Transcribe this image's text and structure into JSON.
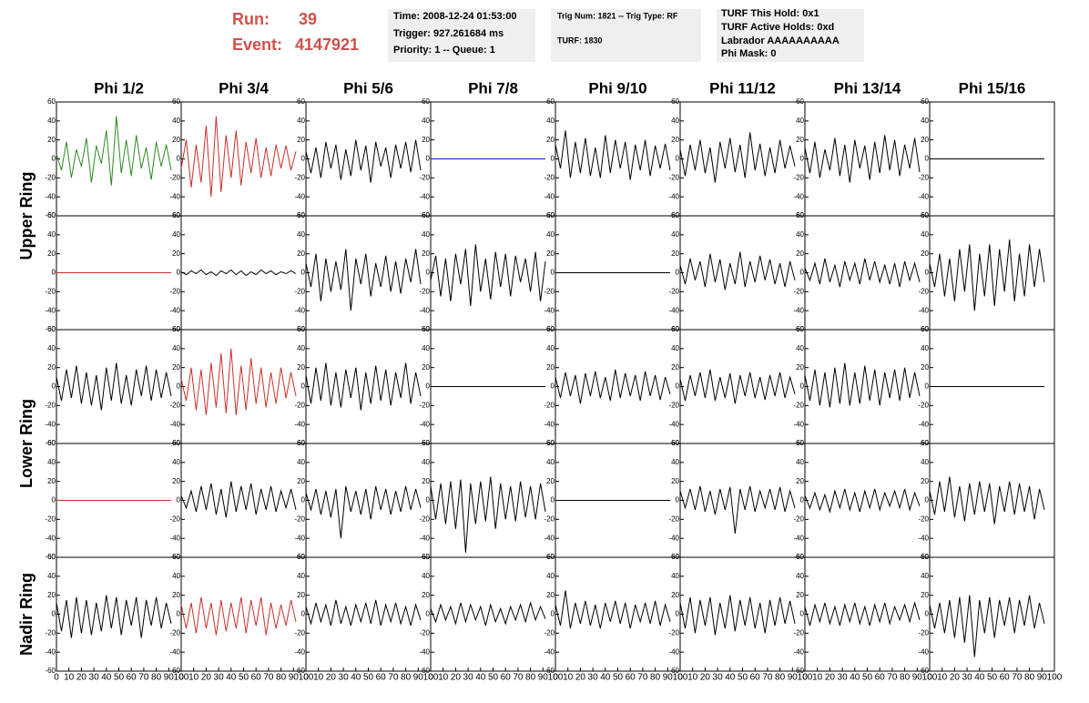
{
  "header": {
    "run_label": "Run:",
    "run": "39",
    "event_label": "Event:",
    "event": "4147921"
  },
  "info": [
    [
      "Time: 2008-12-24 01:53:00",
      "Trigger: 927.261684 ms",
      "Priority: 1 -- Queue: 1"
    ],
    [
      "Trig Num: 1821 -- Trig Type: RF",
      "TURF: 1830"
    ],
    [
      "TURF This Hold: 0x1",
      "TURF Active Holds: 0xd",
      "Labrador AAAAAAAAAA",
      "Phi Mask: 0"
    ]
  ],
  "columns": [
    "Phi 1/2",
    "Phi 3/4",
    "Phi 5/6",
    "Phi 7/8",
    "Phi 9/10",
    "Phi 11/12",
    "Phi 13/14",
    "Phi 15/16"
  ],
  "rows": [
    "Upper Ring",
    "Lower Ring",
    "Nadir Ring"
  ],
  "axes": {
    "xlim": [
      0,
      100
    ],
    "ylim": [
      -60,
      60
    ],
    "yticks": [
      -60,
      -40,
      -20,
      0,
      20,
      40,
      60
    ],
    "xticks": [
      0,
      10,
      20,
      30,
      40,
      50,
      60,
      70,
      80,
      90,
      100
    ]
  },
  "x": [
    0,
    4,
    8,
    12,
    16,
    20,
    24,
    28,
    32,
    36,
    40,
    44,
    48,
    52,
    56,
    60,
    64,
    68,
    72,
    76,
    80,
    84,
    88,
    92
  ],
  "chart_data": [
    {
      "type": "line",
      "color": "#2a8a1e",
      "values": [
        5,
        -12,
        18,
        -20,
        10,
        -8,
        22,
        -25,
        14,
        -5,
        30,
        -28,
        45,
        -15,
        20,
        -18,
        25,
        -10,
        12,
        -22,
        18,
        -8,
        15,
        -12
      ]
    },
    {
      "type": "line",
      "color": "#c8302a",
      "values": [
        -10,
        20,
        -30,
        15,
        -25,
        35,
        -40,
        45,
        -35,
        25,
        -20,
        30,
        -28,
        18,
        -15,
        22,
        -20,
        12,
        -18,
        15,
        -10,
        14,
        -12,
        8
      ]
    },
    {
      "type": "line",
      "color": "#000000",
      "values": [
        8,
        -15,
        12,
        -20,
        18,
        -10,
        15,
        -22,
        10,
        -18,
        20,
        -12,
        14,
        -25,
        18,
        -8,
        12,
        -20,
        15,
        -10,
        18,
        -14,
        20,
        -12
      ]
    },
    {
      "type": "line",
      "color": "#1a1aa0",
      "values": [
        0,
        0,
        0,
        0,
        0,
        0,
        0,
        0,
        0,
        0,
        0,
        0,
        0,
        0,
        0,
        0,
        0,
        0,
        0,
        0,
        0,
        0,
        0,
        0
      ]
    },
    {
      "type": "line",
      "color": "#000000",
      "values": [
        15,
        -10,
        30,
        -20,
        18,
        -15,
        22,
        -18,
        12,
        -20,
        25,
        -15,
        20,
        -10,
        18,
        -22,
        15,
        -12,
        20,
        -18,
        14,
        -10,
        16,
        -12
      ]
    },
    {
      "type": "line",
      "color": "#000000",
      "values": [
        10,
        -18,
        15,
        -12,
        20,
        -15,
        12,
        -25,
        18,
        -10,
        22,
        -14,
        15,
        -20,
        28,
        -12,
        16,
        -18,
        12,
        -15,
        20,
        -10,
        14,
        -8
      ]
    },
    {
      "type": "line",
      "color": "#000000",
      "values": [
        12,
        -15,
        18,
        -20,
        10,
        -12,
        22,
        -18,
        15,
        -25,
        20,
        -10,
        14,
        -22,
        18,
        -15,
        25,
        -12,
        20,
        -18,
        15,
        -10,
        22,
        -14
      ]
    },
    {
      "type": "line",
      "color": "#000000",
      "values": [
        0,
        0,
        0,
        0,
        0,
        0,
        0,
        0,
        0,
        0,
        0,
        0,
        0,
        0,
        0,
        0,
        0,
        0,
        0,
        0,
        0,
        0,
        0,
        0
      ]
    },
    {
      "type": "line",
      "color": "#c8302a",
      "values": [
        0,
        0,
        0,
        0,
        0,
        0,
        0,
        0,
        0,
        0,
        0,
        0,
        0,
        0,
        0,
        0,
        0,
        0,
        0,
        0,
        0,
        0,
        0,
        0
      ]
    },
    {
      "type": "line",
      "color": "#000000",
      "values": [
        1,
        -2,
        2,
        -1,
        3,
        -2,
        1,
        -3,
        2,
        -1,
        3,
        -2,
        2,
        -3,
        1,
        -2,
        3,
        -1,
        2,
        -2,
        1,
        -1,
        2,
        -1
      ]
    },
    {
      "type": "line",
      "color": "#000000",
      "values": [
        10,
        -15,
        20,
        -30,
        15,
        -20,
        12,
        -18,
        25,
        -40,
        15,
        -12,
        20,
        -25,
        10,
        -15,
        18,
        -20,
        12,
        -22,
        15,
        -10,
        25,
        -12
      ]
    },
    {
      "type": "line",
      "color": "#000000",
      "values": [
        -8,
        18,
        -25,
        15,
        -30,
        20,
        -12,
        25,
        -35,
        30,
        -20,
        15,
        -28,
        22,
        -15,
        20,
        -25,
        18,
        -10,
        15,
        -20,
        22,
        -30,
        12
      ]
    },
    {
      "type": "line",
      "color": "#000000",
      "values": [
        0,
        0,
        0,
        0,
        0,
        0,
        0,
        0,
        0,
        0,
        0,
        0,
        0,
        0,
        0,
        0,
        0,
        0,
        0,
        0,
        0,
        0,
        0,
        0
      ]
    },
    {
      "type": "line",
      "color": "#000000",
      "values": [
        8,
        -12,
        15,
        -8,
        12,
        -15,
        20,
        -10,
        14,
        -18,
        10,
        -12,
        22,
        -15,
        12,
        -10,
        18,
        -8,
        14,
        -12,
        10,
        -15,
        12,
        -8
      ]
    },
    {
      "type": "line",
      "color": "#000000",
      "values": [
        5,
        -8,
        10,
        -12,
        15,
        -10,
        8,
        -15,
        12,
        -8,
        10,
        -12,
        15,
        -8,
        12,
        -10,
        8,
        -12,
        10,
        -15,
        12,
        -8,
        10,
        -10
      ]
    },
    {
      "type": "line",
      "color": "#000000",
      "values": [
        10,
        -15,
        20,
        -25,
        15,
        -30,
        25,
        -20,
        30,
        -40,
        20,
        -25,
        30,
        -35,
        25,
        -20,
        35,
        -30,
        20,
        -25,
        30,
        -15,
        25,
        -10
      ]
    },
    {
      "type": "line",
      "color": "#000000",
      "values": [
        10,
        -15,
        18,
        -12,
        22,
        -18,
        15,
        -20,
        12,
        -25,
        20,
        -15,
        25,
        -18,
        12,
        -20,
        18,
        -10,
        22,
        -15,
        18,
        -12,
        15,
        -10
      ]
    },
    {
      "type": "line",
      "color": "#c8302a",
      "values": [
        8,
        -15,
        20,
        -25,
        18,
        -30,
        25,
        -22,
        35,
        -28,
        40,
        -30,
        22,
        -25,
        30,
        -18,
        20,
        -22,
        15,
        -18,
        20,
        -12,
        15,
        -10
      ]
    },
    {
      "type": "line",
      "color": "#000000",
      "values": [
        12,
        -18,
        20,
        -15,
        25,
        -20,
        15,
        -22,
        18,
        -12,
        20,
        -25,
        15,
        -18,
        22,
        -15,
        18,
        -20,
        15,
        -12,
        25,
        -18,
        15,
        -10
      ]
    },
    {
      "type": "line",
      "color": "#000000",
      "values": [
        0,
        0,
        0,
        0,
        0,
        0,
        0,
        0,
        0,
        0,
        0,
        0,
        0,
        0,
        0,
        0,
        0,
        0,
        0,
        0,
        0,
        0,
        0,
        0
      ]
    },
    {
      "type": "line",
      "color": "#000000",
      "values": [
        10,
        -12,
        15,
        -10,
        12,
        -18,
        14,
        -10,
        16,
        -12,
        10,
        -15,
        18,
        -12,
        14,
        -10,
        12,
        -15,
        16,
        -10,
        12,
        -14,
        10,
        -8
      ]
    },
    {
      "type": "line",
      "color": "#000000",
      "values": [
        8,
        -15,
        12,
        -10,
        15,
        -12,
        18,
        -15,
        10,
        -12,
        14,
        -18,
        12,
        -10,
        15,
        -12,
        10,
        -14,
        12,
        -10,
        15,
        -12,
        10,
        -8
      ]
    },
    {
      "type": "line",
      "color": "#000000",
      "values": [
        12,
        -15,
        18,
        -20,
        15,
        -22,
        20,
        -18,
        25,
        -20,
        15,
        -18,
        22,
        -15,
        18,
        -20,
        15,
        -12,
        18,
        -15,
        20,
        -12,
        15,
        -10
      ]
    },
    {
      "type": "line",
      "color": "#000000",
      "values": [
        0,
        0,
        0,
        0,
        0,
        0,
        0,
        0,
        0,
        0,
        0,
        0,
        0,
        0,
        0,
        0,
        0,
        0,
        0,
        0,
        0,
        0,
        0,
        0
      ]
    },
    {
      "type": "line",
      "color": "#c8302a",
      "values": [
        0,
        0,
        0,
        0,
        0,
        0,
        0,
        0,
        0,
        0,
        0,
        0,
        0,
        0,
        0,
        0,
        0,
        0,
        0,
        0,
        0,
        0,
        0,
        0
      ]
    },
    {
      "type": "line",
      "color": "#000000",
      "values": [
        5,
        -8,
        10,
        -12,
        15,
        -10,
        18,
        -15,
        12,
        -18,
        20,
        -12,
        15,
        -10,
        18,
        -15,
        12,
        -10,
        15,
        -12,
        10,
        -8,
        12,
        -10
      ]
    },
    {
      "type": "line",
      "color": "#000000",
      "values": [
        8,
        -10,
        12,
        -15,
        10,
        -18,
        12,
        -40,
        15,
        -12,
        10,
        -15,
        12,
        -20,
        15,
        -10,
        12,
        -15,
        10,
        -12,
        15,
        -10,
        12,
        -8
      ]
    },
    {
      "type": "line",
      "color": "#000000",
      "values": [
        15,
        -20,
        18,
        -25,
        20,
        -30,
        22,
        -55,
        18,
        -25,
        20,
        -22,
        25,
        -30,
        18,
        -20,
        15,
        -22,
        20,
        -18,
        15,
        -20,
        18,
        -12
      ]
    },
    {
      "type": "line",
      "color": "#000000",
      "values": [
        0,
        0,
        0,
        0,
        0,
        0,
        0,
        0,
        0,
        0,
        0,
        0,
        0,
        0,
        0,
        0,
        0,
        0,
        0,
        0,
        0,
        0,
        0,
        0
      ]
    },
    {
      "type": "line",
      "color": "#000000",
      "values": [
        10,
        -8,
        12,
        -10,
        15,
        -12,
        10,
        -15,
        12,
        -10,
        14,
        -35,
        12,
        -10,
        15,
        -12,
        10,
        -8,
        12,
        -10,
        14,
        -12,
        10,
        -8
      ]
    },
    {
      "type": "line",
      "color": "#000000",
      "values": [
        5,
        -8,
        8,
        -10,
        6,
        -12,
        10,
        -8,
        12,
        -10,
        8,
        -12,
        10,
        -8,
        12,
        -10,
        8,
        -6,
        10,
        -8,
        12,
        -10,
        8,
        -6
      ]
    },
    {
      "type": "line",
      "color": "#000000",
      "values": [
        10,
        -15,
        20,
        -12,
        25,
        -18,
        15,
        -22,
        18,
        -15,
        20,
        -12,
        18,
        -25,
        15,
        -12,
        20,
        -15,
        18,
        -12,
        15,
        -20,
        12,
        -10
      ]
    },
    {
      "type": "line",
      "color": "#000000",
      "values": [
        12,
        -18,
        15,
        -25,
        18,
        -20,
        15,
        -22,
        12,
        -18,
        20,
        -15,
        18,
        -22,
        15,
        -12,
        18,
        -25,
        15,
        -12,
        18,
        -15,
        12,
        -10
      ]
    },
    {
      "type": "line",
      "color": "#c8302a",
      "values": [
        10,
        -15,
        12,
        -20,
        18,
        -15,
        12,
        -22,
        15,
        -18,
        12,
        -15,
        18,
        -20,
        15,
        -12,
        18,
        -22,
        12,
        -15,
        10,
        -12,
        15,
        -8
      ]
    },
    {
      "type": "line",
      "color": "#000000",
      "values": [
        8,
        -10,
        12,
        -8,
        10,
        -12,
        15,
        -10,
        8,
        -12,
        10,
        -8,
        12,
        -10,
        15,
        -12,
        10,
        -8,
        12,
        -10,
        8,
        -12,
        10,
        -6
      ]
    },
    {
      "type": "line",
      "color": "#000000",
      "values": [
        6,
        -8,
        10,
        -6,
        8,
        -10,
        12,
        -8,
        10,
        -6,
        8,
        -12,
        10,
        -8,
        6,
        -10,
        8,
        -6,
        10,
        -8,
        12,
        -6,
        8,
        -5
      ]
    },
    {
      "type": "line",
      "color": "#000000",
      "values": [
        10,
        -12,
        25,
        -15,
        12,
        -10,
        14,
        -12,
        10,
        -15,
        12,
        -8,
        14,
        -10,
        12,
        -15,
        10,
        -8,
        12,
        -10,
        14,
        -12,
        10,
        -8
      ]
    },
    {
      "type": "line",
      "color": "#000000",
      "values": [
        12,
        -15,
        18,
        -20,
        15,
        -12,
        18,
        -22,
        12,
        -15,
        20,
        -18,
        15,
        -12,
        18,
        -15,
        12,
        -20,
        15,
        -12,
        18,
        -10,
        14,
        -10
      ]
    },
    {
      "type": "line",
      "color": "#000000",
      "values": [
        8,
        -12,
        10,
        -8,
        12,
        -10,
        8,
        -12,
        10,
        -8,
        12,
        -10,
        8,
        -12,
        10,
        -8,
        12,
        -10,
        8,
        -6,
        10,
        -8,
        12,
        -6
      ]
    },
    {
      "type": "line",
      "color": "#000000",
      "values": [
        10,
        -15,
        12,
        -20,
        15,
        -25,
        18,
        -30,
        20,
        -45,
        15,
        -20,
        18,
        -25,
        15,
        -12,
        18,
        -20,
        15,
        -12,
        20,
        -15,
        12,
        -10
      ]
    }
  ]
}
